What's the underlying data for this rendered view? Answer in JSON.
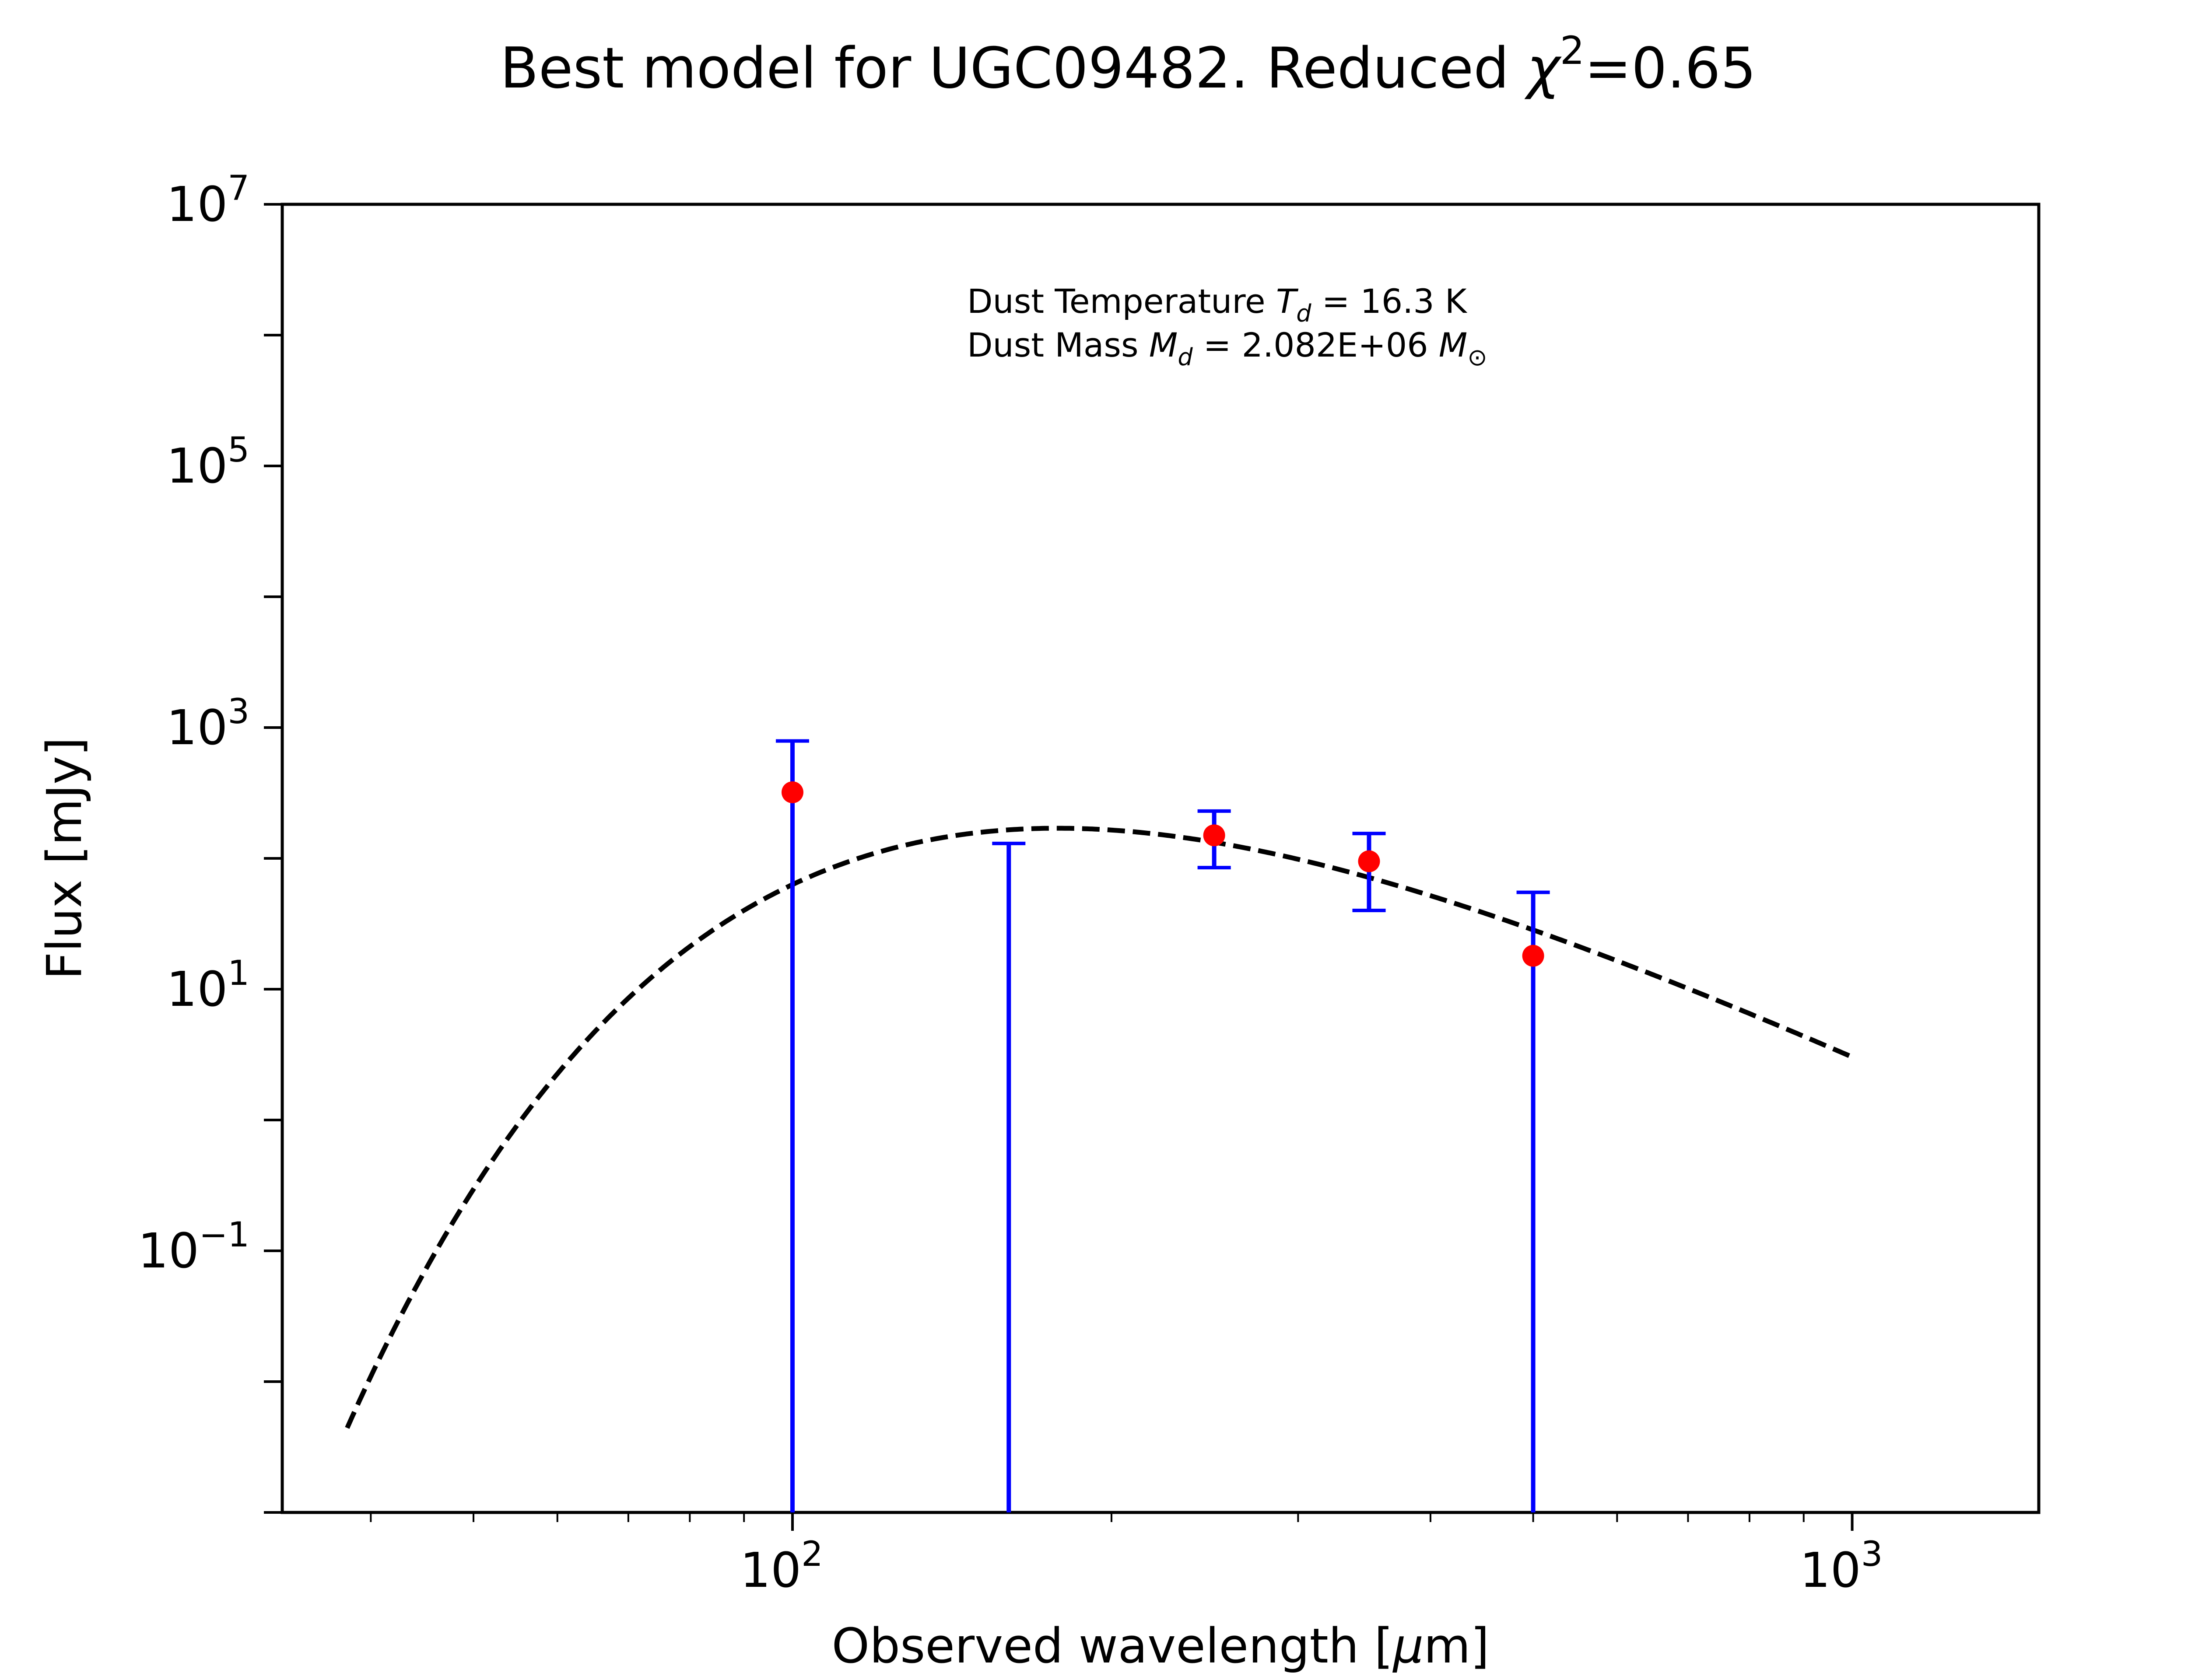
{
  "chart_data": {
    "type": "scatter",
    "title": {
      "prefix": "Best model for UGC09482. Reduced ",
      "chi_symbol": "χ",
      "chi_exponent": "2",
      "suffix": "=0.65"
    },
    "xlabel": {
      "prefix": "Observed wavelength [",
      "mu": "μ",
      "suffix": "m]"
    },
    "ylabel": "Flux [mJy]",
    "xscale": "log",
    "yscale": "log",
    "xlim": [
      33,
      1500
    ],
    "ylim": [
      0.001,
      10000000
    ],
    "x_ticks": [
      {
        "base": "10",
        "exp": "2",
        "value": 100
      },
      {
        "base": "10",
        "exp": "3",
        "value": 1000
      }
    ],
    "y_ticks": [
      {
        "base": "10",
        "exp": "7",
        "value": 10000000
      },
      {
        "base": "10",
        "exp": "5",
        "value": 100000
      },
      {
        "base": "10",
        "exp": "3",
        "value": 1000
      },
      {
        "base": "10",
        "exp": "1",
        "value": 10
      },
      {
        "base": "10",
        "exp": "−1",
        "value": 0.1
      }
    ],
    "grid": false,
    "annotation": {
      "line1_prefix": "Dust Temperature ",
      "line1_sym": "T",
      "line1_sub": "d",
      "line1_value": " = 16.3 K",
      "line2_prefix": "Dust Mass ",
      "line2_sym": "M",
      "line2_sub": "d",
      "line2_value": " = 2.082E+06 ",
      "line2_unit": "M",
      "line2_unit_sub": "⊙"
    },
    "observations": {
      "marker_color": "#ff0000",
      "errorbar_color": "#0000ff",
      "points": [
        {
          "x": 100,
          "y": 320,
          "yerr_low": 0.001,
          "yerr_high": 790
        },
        {
          "x": 250,
          "y": 150,
          "yerr_low": 85,
          "yerr_high": 230
        },
        {
          "x": 350,
          "y": 95,
          "yerr_low": 40,
          "yerr_high": 155
        },
        {
          "x": 500,
          "y": 18,
          "yerr_low": 0.001,
          "yerr_high": 55
        }
      ],
      "upper_limits": [
        {
          "x": 160,
          "y_high": 130,
          "y_low": 0.001
        }
      ]
    },
    "model": {
      "style": "dashed",
      "color": "#000000",
      "T_d": 16.3,
      "beta": 2,
      "x_range": [
        38,
        1000
      ],
      "peak_flux": 170
    }
  }
}
